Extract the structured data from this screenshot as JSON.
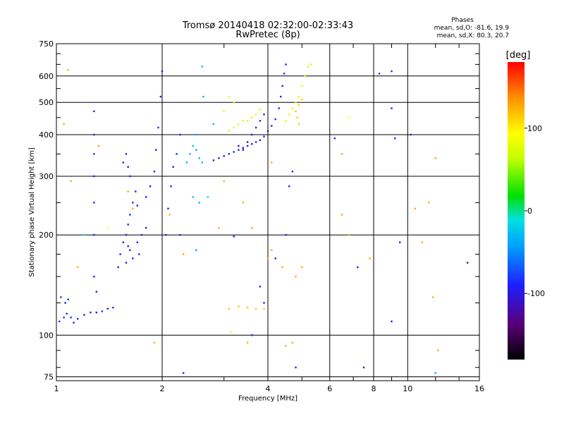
{
  "chart_data": {
    "type": "scatter",
    "title": "Tromsø 20140418 02:32:00-02:33:43",
    "subtitle": "RwPretec (8p)",
    "xlabel": "Frequency [MHz]",
    "ylabel": "Stationary phase Virtual Height [km]",
    "x_scale": "log",
    "y_scale": "log",
    "xlim": [
      1,
      16
    ],
    "ylim": [
      73,
      750
    ],
    "x_ticks": [
      1,
      2,
      4,
      6,
      8,
      10,
      16
    ],
    "x_tick_labels": [
      "1",
      "2",
      "4",
      "6",
      "8",
      "10",
      "16"
    ],
    "x_minor_ticks": [
      3,
      5,
      7,
      9,
      12,
      14
    ],
    "y_ticks": [
      75,
      100,
      200,
      300,
      400,
      500,
      600,
      750
    ],
    "y_tick_labels": [
      "75",
      "100",
      "200",
      "300",
      "400",
      "500",
      "600",
      "750"
    ],
    "y_minor_ticks": [
      80,
      90,
      125,
      150,
      175,
      250,
      350,
      450,
      550,
      650,
      700
    ],
    "grid": true,
    "annotation": {
      "title": "Phases",
      "lines": [
        "mean, sd,O: -81.6, 19.9",
        "mean, sd,X: 80.3, 20.7"
      ]
    },
    "colorbar": {
      "label": "[deg]",
      "range": [
        -180,
        180
      ],
      "ticks": [
        100,
        0,
        -100
      ],
      "tick_labels": [
        "100",
        "0",
        "-100"
      ]
    },
    "series": [
      {
        "points": [
          [
            1.02,
            110,
            -95
          ],
          [
            1.05,
            113,
            -95
          ],
          [
            1.07,
            116,
            -100
          ],
          [
            1.1,
            113,
            -95
          ],
          [
            1.12,
            109,
            -100
          ],
          [
            1.15,
            112,
            -95
          ],
          [
            1.2,
            115,
            -100
          ],
          [
            1.25,
            117,
            -95
          ],
          [
            1.3,
            117,
            -100
          ],
          [
            1.35,
            118,
            -95
          ],
          [
            1.4,
            120,
            -100
          ],
          [
            1.45,
            121,
            -95
          ],
          [
            1.03,
            130,
            -95
          ],
          [
            1.06,
            125,
            -100
          ],
          [
            1.08,
            128,
            -95
          ],
          [
            1.28,
            150,
            -100
          ],
          [
            1.28,
            200,
            -100
          ],
          [
            1.28,
            250,
            -100
          ],
          [
            1.28,
            300,
            -100
          ],
          [
            1.28,
            350,
            -100
          ],
          [
            1.28,
            400,
            -100
          ],
          [
            1.28,
            470,
            -100
          ],
          [
            1.5,
            160,
            -100
          ],
          [
            1.52,
            175,
            -100
          ],
          [
            1.55,
            190,
            -100
          ],
          [
            1.58,
            200,
            -100
          ],
          [
            1.6,
            215,
            -100
          ],
          [
            1.62,
            230,
            -100
          ],
          [
            1.65,
            250,
            -100
          ],
          [
            1.68,
            270,
            -100
          ],
          [
            1.7,
            245,
            -100
          ],
          [
            1.62,
            180,
            -100
          ],
          [
            1.65,
            170,
            -100
          ],
          [
            1.7,
            190,
            -100
          ],
          [
            1.75,
            200,
            -100
          ],
          [
            1.8,
            210,
            -100
          ],
          [
            1.72,
            175,
            -100
          ],
          [
            1.58,
            165,
            -100
          ],
          [
            1.6,
            185,
            -100
          ],
          [
            1.55,
            330,
            -100
          ],
          [
            1.58,
            350,
            -100
          ],
          [
            1.6,
            320,
            -100
          ],
          [
            1.62,
            300,
            -100
          ],
          [
            1.8,
            260,
            -100
          ],
          [
            1.85,
            280,
            -100
          ],
          [
            1.9,
            310,
            -100
          ],
          [
            1.92,
            360,
            -100
          ],
          [
            1.95,
            420,
            -100
          ],
          [
            1.98,
            520,
            -100
          ],
          [
            2.0,
            620,
            -100
          ],
          [
            2.05,
            200,
            -100
          ],
          [
            2.08,
            240,
            -100
          ],
          [
            2.12,
            280,
            -100
          ],
          [
            2.15,
            320,
            -100
          ],
          [
            2.2,
            350,
            -100
          ],
          [
            2.25,
            400,
            -100
          ],
          [
            2.35,
            330,
            -50
          ],
          [
            2.4,
            350,
            -50
          ],
          [
            2.45,
            370,
            -50
          ],
          [
            2.5,
            360,
            -50
          ],
          [
            2.55,
            340,
            -50
          ],
          [
            2.6,
            330,
            -50
          ],
          [
            2.5,
            400,
            -50
          ],
          [
            2.45,
            260,
            -50
          ],
          [
            2.55,
            250,
            -50
          ],
          [
            2.6,
            640,
            -50
          ],
          [
            2.62,
            520,
            -50
          ],
          [
            2.8,
            430,
            -50
          ],
          [
            2.8,
            335,
            -100
          ],
          [
            2.9,
            340,
            -100
          ],
          [
            3.0,
            345,
            -100
          ],
          [
            3.1,
            350,
            -100
          ],
          [
            3.2,
            355,
            -100
          ],
          [
            3.3,
            360,
            -100
          ],
          [
            3.4,
            365,
            -100
          ],
          [
            3.5,
            370,
            -100
          ],
          [
            3.6,
            375,
            -100
          ],
          [
            3.7,
            380,
            -100
          ],
          [
            3.8,
            385,
            -100
          ],
          [
            3.9,
            395,
            -100
          ],
          [
            4.0,
            410,
            -100
          ],
          [
            4.1,
            425,
            -100
          ],
          [
            4.2,
            445,
            -100
          ],
          [
            4.3,
            480,
            -100
          ],
          [
            4.35,
            520,
            -100
          ],
          [
            4.4,
            560,
            -100
          ],
          [
            4.45,
            610,
            -100
          ],
          [
            4.5,
            650,
            -100
          ],
          [
            3.3,
            370,
            -130
          ],
          [
            3.4,
            360,
            -130
          ],
          [
            3.5,
            380,
            -130
          ],
          [
            3.6,
            400,
            -110
          ],
          [
            3.7,
            420,
            -110
          ],
          [
            3.8,
            440,
            -110
          ],
          [
            3.9,
            460,
            -110
          ],
          [
            3.1,
            410,
            70
          ],
          [
            3.2,
            420,
            70
          ],
          [
            3.3,
            430,
            70
          ],
          [
            3.4,
            440,
            70
          ],
          [
            3.5,
            440,
            70
          ],
          [
            3.6,
            450,
            70
          ],
          [
            3.7,
            460,
            70
          ],
          [
            3.8,
            475,
            70
          ],
          [
            3.1,
            520,
            80
          ],
          [
            3.2,
            500,
            80
          ],
          [
            3.0,
            470,
            80
          ],
          [
            4.5,
            440,
            70
          ],
          [
            4.6,
            460,
            70
          ],
          [
            4.7,
            480,
            70
          ],
          [
            4.8,
            500,
            70
          ],
          [
            4.9,
            520,
            70
          ],
          [
            5.0,
            560,
            70
          ],
          [
            5.1,
            600,
            70
          ],
          [
            5.2,
            640,
            70
          ],
          [
            5.3,
            650,
            70
          ],
          [
            4.8,
            470,
            120
          ],
          [
            4.9,
            490,
            120
          ],
          [
            5.0,
            510,
            120
          ],
          [
            4.85,
            450,
            120
          ],
          [
            4.9,
            430,
            120
          ],
          [
            3.1,
            120,
            120
          ],
          [
            3.3,
            122,
            120
          ],
          [
            3.5,
            121,
            120
          ],
          [
            3.7,
            120,
            120
          ],
          [
            3.9,
            120,
            120
          ],
          [
            3.15,
            102,
            90
          ],
          [
            1.08,
            625,
            130
          ],
          [
            1.05,
            430,
            130
          ],
          [
            1.32,
            370,
            130
          ],
          [
            1.1,
            290,
            130
          ],
          [
            1.6,
            270,
            130
          ],
          [
            1.65,
            240,
            130
          ],
          [
            2.1,
            230,
            130
          ],
          [
            2.25,
            200,
            -110
          ],
          [
            2.3,
            175,
            130
          ],
          [
            3.0,
            290,
            130
          ],
          [
            3.2,
            198,
            -110
          ],
          [
            4.1,
            180,
            130
          ],
          [
            4.2,
            170,
            -110
          ],
          [
            4.5,
            200,
            -110
          ],
          [
            4.6,
            280,
            -100
          ],
          [
            4.7,
            310,
            -100
          ],
          [
            5.0,
            160,
            130
          ],
          [
            4.4,
            160,
            130
          ],
          [
            4.0,
            170,
            130
          ],
          [
            4.8,
            150,
            130
          ],
          [
            3.5,
            95,
            130
          ],
          [
            3.6,
            100,
            -110
          ],
          [
            4.5,
            93,
            130
          ],
          [
            4.7,
            95,
            130
          ],
          [
            4.8,
            80,
            -110
          ],
          [
            6.2,
            390,
            -100
          ],
          [
            6.5,
            350,
            130
          ],
          [
            6.5,
            230,
            130
          ],
          [
            6.8,
            200,
            130
          ],
          [
            6.8,
            450,
            100
          ],
          [
            7.2,
            160,
            -100
          ],
          [
            7.5,
            80,
            -100
          ],
          [
            7.8,
            170,
            130
          ],
          [
            8.3,
            610,
            -100
          ],
          [
            9.0,
            620,
            -100
          ],
          [
            9.2,
            390,
            -100
          ],
          [
            9.0,
            480,
            -100
          ],
          [
            9.0,
            110,
            -100
          ],
          [
            9.5,
            190,
            -100
          ],
          [
            10.2,
            400,
            -100
          ],
          [
            10.5,
            240,
            130
          ],
          [
            11.0,
            190,
            130
          ],
          [
            11.5,
            250,
            130
          ],
          [
            11.8,
            130,
            130
          ],
          [
            12.0,
            340,
            130
          ],
          [
            12.2,
            90,
            130
          ],
          [
            12.0,
            77,
            -60
          ],
          [
            14.8,
            165,
            -100
          ],
          [
            1.2,
            200,
            -30
          ],
          [
            1.15,
            160,
            130
          ],
          [
            1.3,
            135,
            -100
          ],
          [
            1.4,
            210,
            100
          ],
          [
            1.9,
            95,
            130
          ],
          [
            2.3,
            77,
            -100
          ],
          [
            2.5,
            180,
            -60
          ],
          [
            2.7,
            260,
            -30
          ],
          [
            2.9,
            210,
            130
          ],
          [
            3.4,
            250,
            130
          ],
          [
            3.6,
            210,
            130
          ],
          [
            3.8,
            140,
            -100
          ],
          [
            3.9,
            125,
            -100
          ],
          [
            4.1,
            330,
            130
          ]
        ]
      }
    ]
  }
}
